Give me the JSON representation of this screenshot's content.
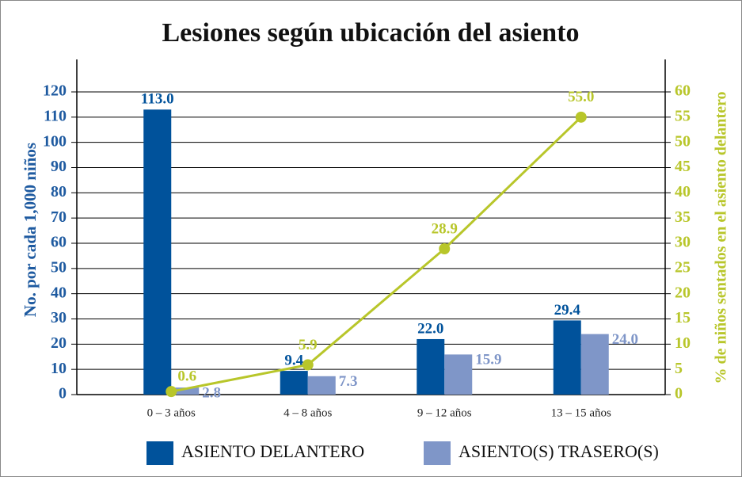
{
  "chart_data": {
    "type": "bar_line",
    "title": "Lesiones según ubicación del asiento",
    "y_label": "No. por cada 1,000 niños",
    "y2_label": "% de niños sentados en el asiento delantero",
    "categories": [
      "0 – 3 años",
      "4 – 8 años",
      "9 – 12 años",
      "13 – 15 años"
    ],
    "series": [
      {
        "name": "ASIENTO DELANTERO",
        "type": "bar",
        "color": "#00529b",
        "values": [
          113.0,
          9.4,
          22.0,
          29.4
        ],
        "value_labels": [
          "113.0",
          "9.4",
          "22.0",
          "29.4"
        ]
      },
      {
        "name": "ASIENTO(S) TRASERO(S)",
        "type": "bar",
        "color": "#7f96c8",
        "values": [
          2.8,
          7.3,
          15.9,
          24.0
        ],
        "value_labels": [
          "2.8",
          "7.3",
          "15.9",
          "24.0"
        ]
      },
      {
        "type": "line",
        "axis": "y2",
        "color": "#b8c62a",
        "values": [
          0.6,
          5.9,
          28.9,
          55.0
        ],
        "value_labels": [
          "0.6",
          "5.9",
          "28.9",
          "55.0"
        ]
      }
    ],
    "ylim": [
      0,
      120
    ],
    "yticks": [
      0,
      10,
      20,
      30,
      40,
      50,
      60,
      70,
      80,
      90,
      100,
      110,
      120
    ],
    "y2lim": [
      0,
      60
    ],
    "y2ticks": [
      0,
      5,
      10,
      15,
      20,
      25,
      30,
      35,
      40,
      45,
      50,
      55,
      60
    ],
    "grid": true,
    "legend": "bottom"
  }
}
